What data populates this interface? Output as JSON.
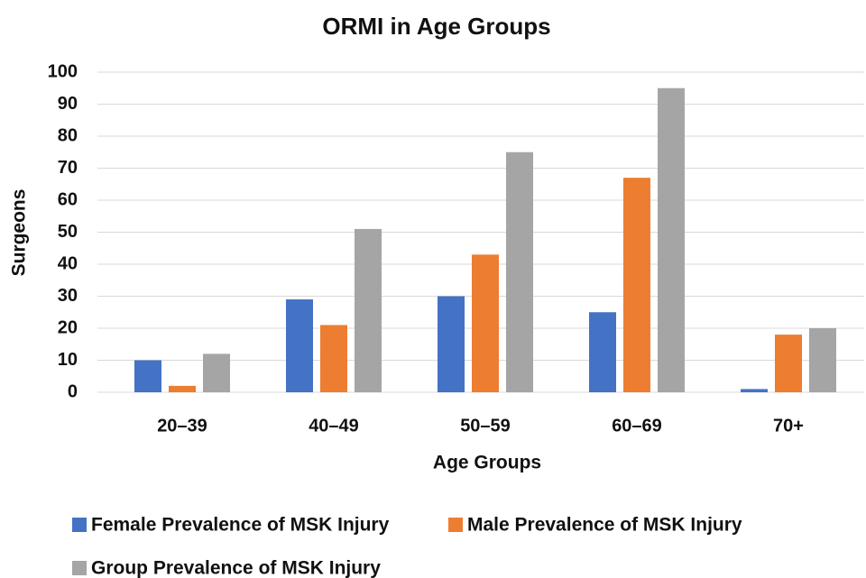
{
  "chart_data": {
    "type": "bar",
    "title": "ORMI in Age Groups",
    "x_label": "Age Groups",
    "y_label": "Surgeons",
    "categories": [
      "20–39",
      "40–49",
      "50–59",
      "60–69",
      "70+"
    ],
    "series": [
      {
        "name": "Female Prevalence of MSK Injury",
        "color": "#4472c4",
        "values": [
          10,
          29,
          30,
          25,
          1
        ]
      },
      {
        "name": "Male Prevalence of MSK Injury",
        "color": "#ed7d31",
        "values": [
          2,
          21,
          43,
          67,
          18
        ]
      },
      {
        "name": "Group Prevalence of MSK Injury",
        "color": "#a5a5a5",
        "values": [
          12,
          51,
          75,
          95,
          20
        ]
      }
    ],
    "ylim": [
      0,
      100
    ],
    "yticks": [
      0,
      10,
      20,
      30,
      40,
      50,
      60,
      70,
      80,
      90,
      100
    ],
    "grid": true,
    "legend": "bottom"
  }
}
